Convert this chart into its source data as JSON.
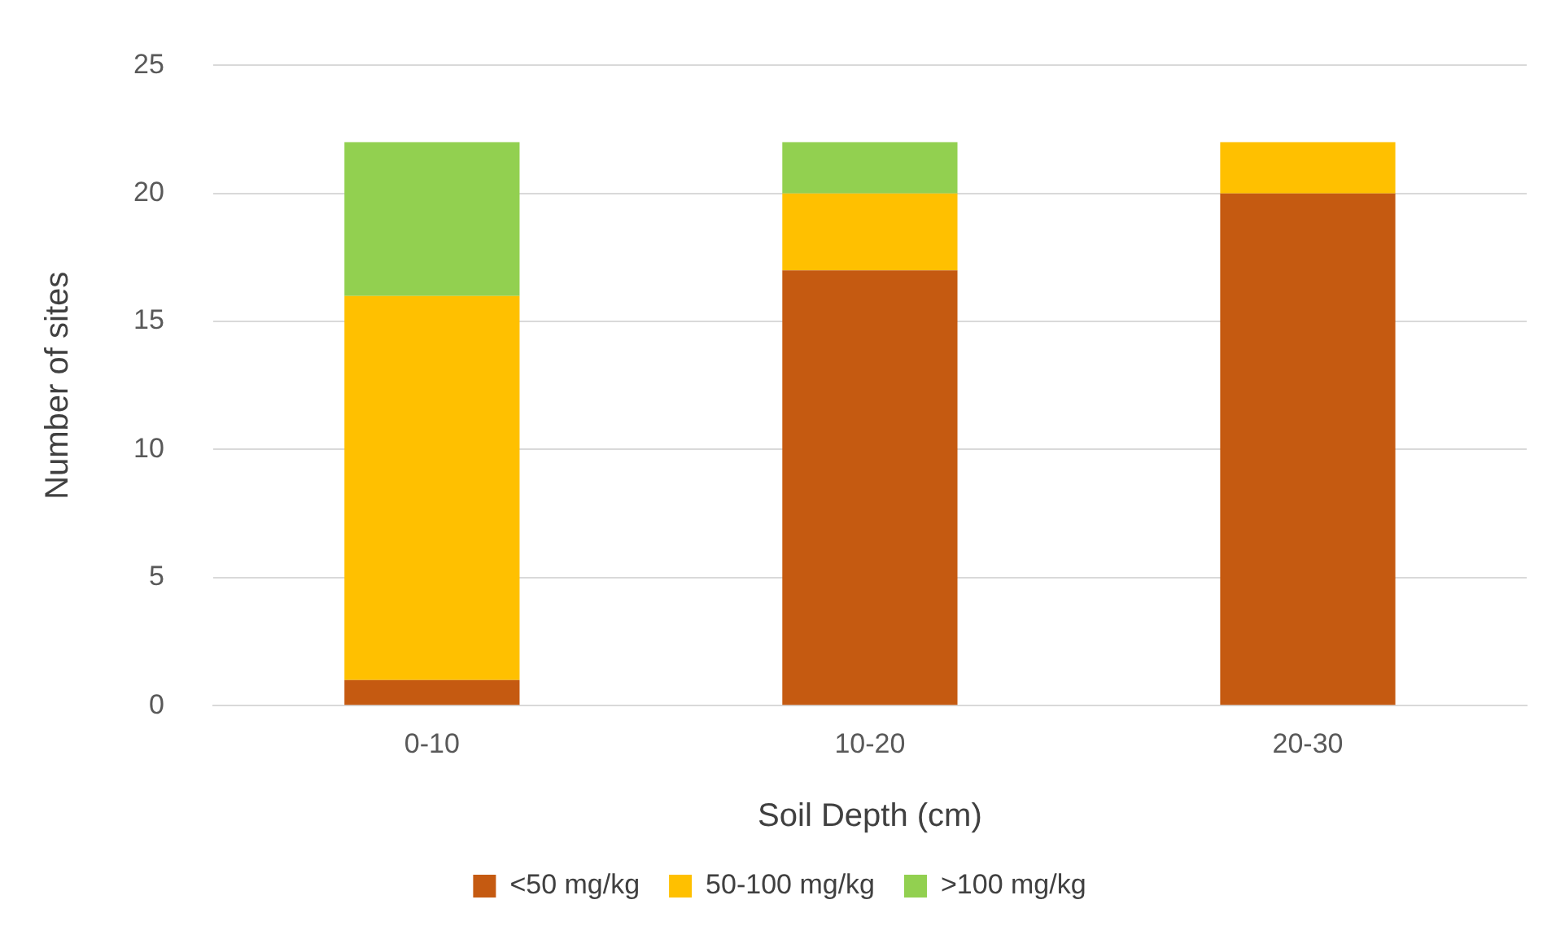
{
  "chart_data": {
    "type": "bar",
    "stacked": true,
    "xlabel": "Soil Depth (cm)",
    "ylabel": "Number of sites",
    "categories": [
      "0-10",
      "10-20",
      "20-30"
    ],
    "series": [
      {
        "name": "<50 mg/kg",
        "color": "#c55a11",
        "values": [
          1,
          17,
          20
        ]
      },
      {
        "name": "50-100 mg/kg",
        "color": "#ffc000",
        "values": [
          15,
          3,
          2
        ]
      },
      {
        "name": ">100 mg/kg",
        "color": "#92d050",
        "values": [
          6,
          2,
          0
        ]
      }
    ],
    "ylim": [
      0,
      25
    ],
    "yticks": [
      0,
      5,
      10,
      15,
      20,
      25
    ],
    "grid": "y",
    "legend": "bottom"
  }
}
